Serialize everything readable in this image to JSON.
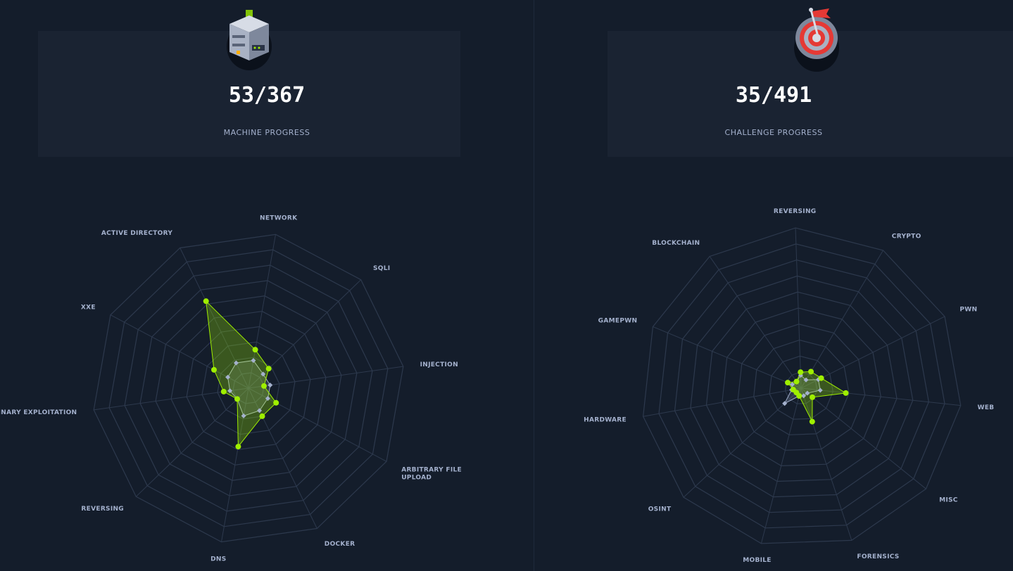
{
  "machine_card": {
    "value": "53/367",
    "label": "MACHINE PROGRESS",
    "icon": "server-icon"
  },
  "challenge_card": {
    "value": "35/491",
    "label": "CHALLENGE PROGRESS",
    "icon": "target-icon"
  },
  "colors": {
    "background": "#141d2b",
    "card": "#1a2332",
    "accent": "#9fef00",
    "secondary": "#a4b1cd",
    "grid": "#2d394d"
  },
  "chart_data": [
    {
      "type": "radar",
      "axes": [
        "NETWORK",
        "SQLI",
        "INJECTION",
        "ARBITRARY FILE UPLOAD",
        "DOCKER",
        "DNS",
        "REVERSING",
        "BINARY EXPLOITATION",
        "XXE",
        "ACTIVE DIRECTORY"
      ],
      "rings": 10,
      "grid": true,
      "series": [
        {
          "color": "#9fef00",
          "values": [
            0.25,
            0.18,
            0.1,
            0.2,
            0.2,
            0.38,
            0.1,
            0.16,
            0.25,
            0.62
          ]
        },
        {
          "color": "#a4b1cd",
          "values": [
            0.18,
            0.13,
            0.14,
            0.14,
            0.16,
            0.18,
            0.1,
            0.12,
            0.15,
            0.18
          ]
        }
      ]
    },
    {
      "type": "radar",
      "axes": [
        "REVERSING",
        "CRYPTO",
        "PWN",
        "WEB",
        "MISC",
        "FORENSICS",
        "MOBILE",
        "OSINT",
        "HARDWARE",
        "GAMEPWN",
        "BLOCKCHAIN"
      ],
      "rings": 10,
      "grid": true,
      "series": [
        {
          "color": "#9fef00",
          "values": [
            0.1,
            0.12,
            0.14,
            0.28,
            0.09,
            0.22,
            0.05,
            0.04,
            0.05,
            0.09,
            0.05
          ]
        },
        {
          "color": "#a4b1cd",
          "values": [
            0.08,
            0.06,
            0.12,
            0.12,
            0.05,
            0.05,
            0.05,
            0.14,
            0.06,
            0.06,
            0.05
          ]
        }
      ]
    }
  ]
}
